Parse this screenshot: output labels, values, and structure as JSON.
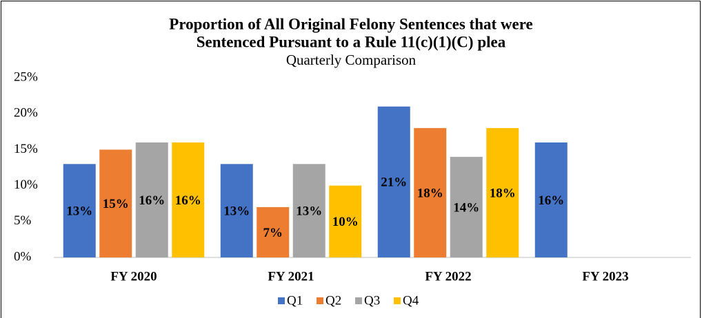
{
  "chart_data": {
    "type": "bar",
    "title": [
      "Proportion of All Original Felony Sentences that were",
      "Sentenced Pursuant to a Rule 11(c)(1)(C) plea"
    ],
    "subtitle": "Quarterly Comparison",
    "categories": [
      "FY 2020",
      "FY 2021",
      "FY 2022",
      "FY 2023"
    ],
    "series": [
      {
        "name": "Q1",
        "color": "#4472c4",
        "values": [
          13,
          13,
          21,
          16
        ],
        "value_labels": [
          "13%",
          "13%",
          "21%",
          "16%"
        ]
      },
      {
        "name": "Q2",
        "color": "#ed7d31",
        "values": [
          15,
          7,
          18,
          null
        ],
        "value_labels": [
          "15%",
          "7%",
          "18%",
          null
        ]
      },
      {
        "name": "Q3",
        "color": "#a5a5a5",
        "values": [
          16,
          13,
          14,
          null
        ],
        "value_labels": [
          "16%",
          "13%",
          "14%",
          null
        ]
      },
      {
        "name": "Q4",
        "color": "#ffc000",
        "values": [
          16,
          10,
          18,
          null
        ],
        "value_labels": [
          "16%",
          "10%",
          "18%",
          null
        ]
      }
    ],
    "ylim": [
      0,
      25
    ],
    "yticks": [
      {
        "value": 0,
        "label": "0%"
      },
      {
        "value": 5,
        "label": "5%"
      },
      {
        "value": 10,
        "label": "10%"
      },
      {
        "value": 15,
        "label": "15%"
      },
      {
        "value": 20,
        "label": "20%"
      },
      {
        "value": 25,
        "label": "25%"
      }
    ],
    "grid": false,
    "legend": "bottom"
  }
}
